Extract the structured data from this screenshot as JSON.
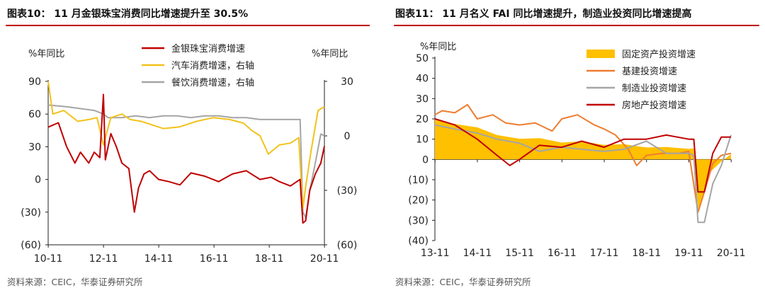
{
  "chart_data": [
    {
      "type": "line",
      "title": "图表10：  11 月金银珠宝消费同比增速提升至 30.5%",
      "source": "资料来源：CEIC，华泰证券研究所",
      "ylabel_left": "%年同比",
      "ylabel_right": "%年同比",
      "y_left_ticks": [
        "90",
        "60",
        "30",
        "0",
        "(30)",
        "(60)"
      ],
      "y_left_range": [
        -60,
        90
      ],
      "y_right_ticks": [
        "30",
        "0",
        "(30)",
        "(60)"
      ],
      "y_right_range": [
        -60,
        30
      ],
      "x_ticks": [
        "10-11",
        "12-11",
        "14-11",
        "16-11",
        "18-11",
        "20-11"
      ],
      "x_range": [
        2010.83,
        2020.83
      ],
      "series": [
        {
          "name": "金银珠宝消费增速",
          "axis": "left",
          "color": "#c00000",
          "x": [
            2010.83,
            2011.2,
            2011.5,
            2011.8,
            2012.0,
            2012.3,
            2012.5,
            2012.7,
            2012.83,
            2012.9,
            2013.1,
            2013.3,
            2013.5,
            2013.75,
            2013.95,
            2014.1,
            2014.3,
            2014.5,
            2014.83,
            2015.2,
            2015.6,
            2016.0,
            2016.5,
            2017.0,
            2017.5,
            2018.0,
            2018.5,
            2018.9,
            2019.2,
            2019.6,
            2019.95,
            2020.05,
            2020.15,
            2020.3,
            2020.5,
            2020.7,
            2020.83
          ],
          "values": [
            48,
            52,
            30,
            15,
            25,
            15,
            25,
            20,
            78,
            18,
            42,
            30,
            15,
            10,
            -30,
            -8,
            5,
            8,
            0,
            -2,
            -5,
            6,
            3,
            -2,
            5,
            8,
            0,
            2,
            -2,
            -6,
            0,
            -40,
            -38,
            -10,
            5,
            15,
            30.5
          ]
        },
        {
          "name": "汽车消费增速，右轴",
          "axis": "right",
          "color": "#f2c21b",
          "x": [
            2010.83,
            2011.0,
            2011.4,
            2011.9,
            2012.3,
            2012.6,
            2012.83,
            2013.1,
            2013.5,
            2013.8,
            2014.2,
            2014.6,
            2015.0,
            2015.6,
            2016.2,
            2016.8,
            2017.4,
            2017.9,
            2018.2,
            2018.5,
            2018.8,
            2019.2,
            2019.6,
            2019.9,
            2020.05,
            2020.15,
            2020.35,
            2020.6,
            2020.83
          ],
          "values": [
            30,
            12,
            14,
            8,
            9,
            10,
            -5,
            10,
            12,
            9,
            8,
            6,
            4,
            5,
            8,
            10,
            9,
            7,
            3,
            0,
            -10,
            -5,
            -4,
            -1,
            -40,
            -28,
            -8,
            14,
            16
          ]
        },
        {
          "name": "餐饮消费增速，右轴",
          "axis": "right",
          "color": "#a5a5a5",
          "x": [
            2010.83,
            2011.5,
            2012.0,
            2012.5,
            2012.83,
            2013.0,
            2013.5,
            2014.0,
            2014.5,
            2015.0,
            2015.5,
            2016.0,
            2016.5,
            2017.0,
            2017.5,
            2018.0,
            2018.5,
            2019.0,
            2019.5,
            2019.95,
            2020.05,
            2020.15,
            2020.3,
            2020.5,
            2020.7,
            2020.83
          ],
          "values": [
            17,
            16,
            15,
            14,
            12,
            10,
            10,
            11,
            10,
            11,
            11,
            10,
            11,
            11,
            10,
            10,
            9,
            9,
            9,
            9,
            -42,
            -45,
            -30,
            -15,
            1,
            0
          ]
        }
      ]
    },
    {
      "type": "line",
      "title": "图表11：  11 月名义 FAI 同比增速提升，制造业投资同比增速提高",
      "source": "资料来源：CEIC，华泰证券研究所",
      "ylabel_left": "%年同比",
      "y_left_ticks": [
        "50",
        "40",
        "30",
        "20",
        "10",
        "0",
        "(10)",
        "(20)",
        "(30)",
        "(40)"
      ],
      "y_left_range": [
        -40,
        50
      ],
      "x_ticks": [
        "13-11",
        "14-11",
        "15-11",
        "16-11",
        "17-11",
        "18-11",
        "19-11",
        "20-11"
      ],
      "x_range": [
        2013.83,
        2020.83
      ],
      "series": [
        {
          "name": "固定资产投资增速",
          "type": "area",
          "color": "#ffc000",
          "x": [
            2013.83,
            2014.3,
            2014.83,
            2015.3,
            2015.83,
            2016.3,
            2016.83,
            2017.3,
            2017.83,
            2018.3,
            2018.83,
            2019.3,
            2019.83,
            2019.95,
            2020.05,
            2020.2,
            2020.35,
            2020.6,
            2020.83
          ],
          "values": [
            19.6,
            17.5,
            15.8,
            12,
            10.2,
            10.5,
            8.3,
            8.9,
            7.2,
            7.5,
            5.9,
            6.1,
            5.2,
            5.4,
            -24.5,
            -16,
            -6,
            -1,
            2.6
          ]
        },
        {
          "name": "基建投资增速",
          "color": "#ed7d31",
          "x": [
            2013.83,
            2014.0,
            2014.3,
            2014.6,
            2014.83,
            2015.2,
            2015.5,
            2015.83,
            2016.2,
            2016.6,
            2016.83,
            2017.2,
            2017.6,
            2017.83,
            2018.1,
            2018.4,
            2018.6,
            2018.83,
            2019.2,
            2019.6,
            2019.83,
            2020.05,
            2020.2,
            2020.4,
            2020.6,
            2020.83
          ],
          "values": [
            22,
            24,
            23,
            27,
            20,
            22,
            18,
            17,
            18,
            14,
            20,
            22,
            17,
            15,
            12,
            5,
            -3,
            2,
            3,
            3,
            4,
            -26,
            -16,
            -2,
            2,
            3
          ]
        },
        {
          "name": "制造业投资增速",
          "color": "#a5a5a5",
          "x": [
            2013.83,
            2014.3,
            2014.83,
            2015.3,
            2015.83,
            2016.3,
            2016.83,
            2017.3,
            2017.83,
            2018.3,
            2018.83,
            2019.3,
            2019.83,
            2019.95,
            2020.05,
            2020.2,
            2020.4,
            2020.6,
            2020.83
          ],
          "values": [
            17,
            15,
            13,
            10,
            8,
            4,
            6,
            5,
            4,
            5,
            9,
            3,
            3,
            2,
            -31,
            -31,
            -12,
            -3,
            12
          ]
        },
        {
          "name": "房地产投资增速",
          "color": "#c00000",
          "x": [
            2013.83,
            2014.3,
            2014.83,
            2015.3,
            2015.6,
            2015.83,
            2016.3,
            2016.83,
            2017.3,
            2017.83,
            2018.3,
            2018.83,
            2019.3,
            2019.83,
            2019.95,
            2020.05,
            2020.2,
            2020.4,
            2020.6,
            2020.83
          ],
          "values": [
            20,
            17,
            10,
            2,
            -3,
            0,
            7,
            6,
            9,
            6,
            10,
            10,
            12,
            10,
            10,
            -16,
            -16,
            3,
            11,
            11
          ]
        }
      ]
    }
  ]
}
